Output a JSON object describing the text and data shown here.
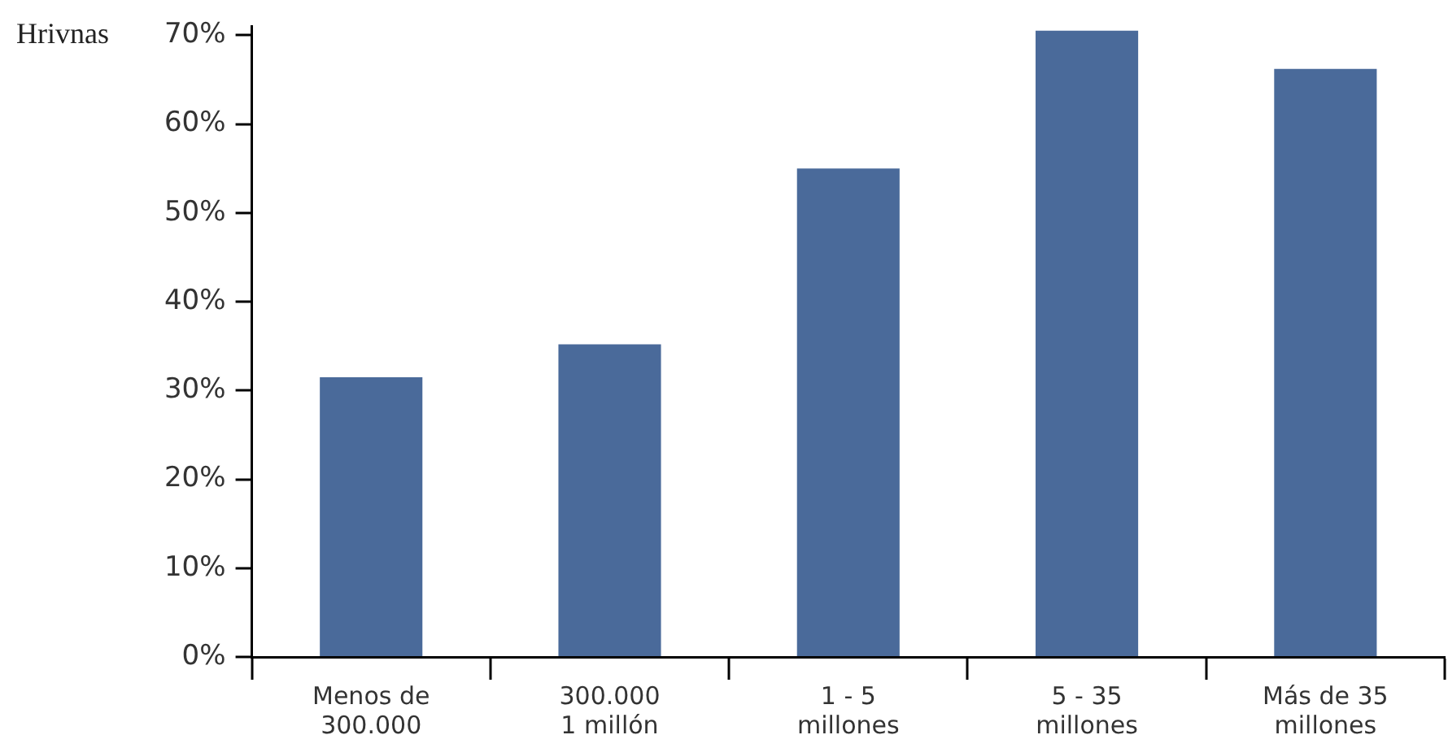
{
  "chart_data": {
    "type": "bar",
    "ylabel": "Hrivnas",
    "categories": [
      "Menos de\n300.000",
      "300.000\n1 millón",
      "1 - 5\nmillones",
      "5 - 35\nmillones",
      "Más de 35\nmillones"
    ],
    "values": [
      31.5,
      35.2,
      55,
      70.5,
      66.2
    ],
    "color": "#4a6a9a",
    "ylim": [
      0,
      71
    ],
    "yticks": [
      {
        "value": 0,
        "label": "0%"
      },
      {
        "value": 10,
        "label": "10%"
      },
      {
        "value": 20,
        "label": "20%"
      },
      {
        "value": 30,
        "label": "30%"
      },
      {
        "value": 40,
        "label": "40%"
      },
      {
        "value": 50,
        "label": "50%"
      },
      {
        "value": 60,
        "label": "60%"
      },
      {
        "value": 70,
        "label": "70%"
      }
    ],
    "grid": false,
    "legend": false
  }
}
